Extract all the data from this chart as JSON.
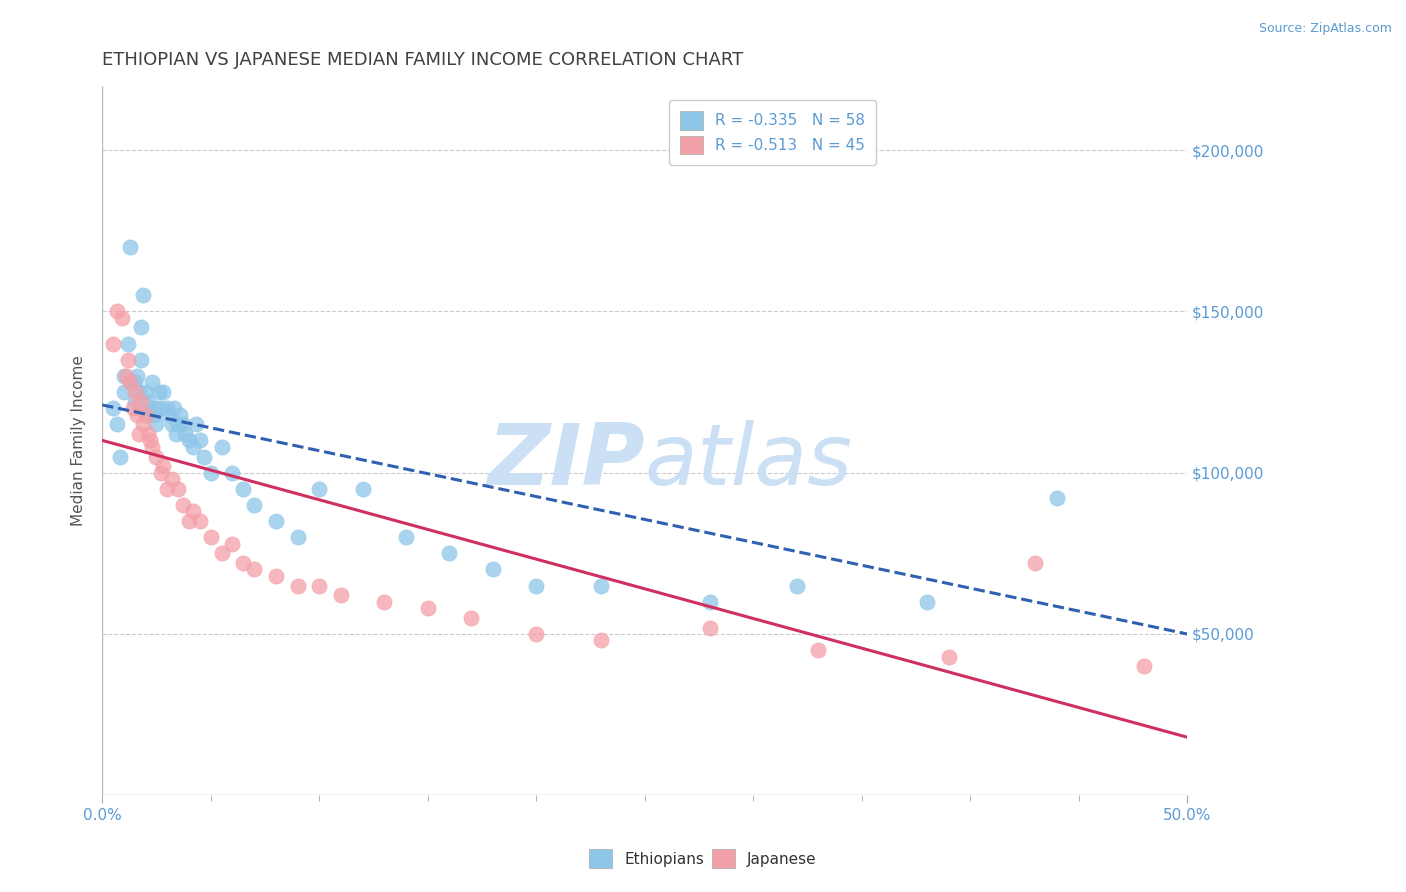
{
  "title": "ETHIOPIAN VS JAPANESE MEDIAN FAMILY INCOME CORRELATION CHART",
  "source_text": "Source: ZipAtlas.com",
  "ylabel": "Median Family Income",
  "xlim": [
    0.0,
    0.5
  ],
  "ylim": [
    0,
    220000
  ],
  "yticks": [
    0,
    50000,
    100000,
    150000,
    200000
  ],
  "ytick_labels": [
    "",
    "$50,000",
    "$100,000",
    "$150,000",
    "$200,000"
  ],
  "xtick_labels_show": [
    "0.0%",
    "50.0%"
  ],
  "xticks_show": [
    0.0,
    0.5
  ],
  "xticks_minor": [
    0.05,
    0.1,
    0.15,
    0.2,
    0.25,
    0.3,
    0.35,
    0.4,
    0.45
  ],
  "legend_entries": [
    {
      "label": "R = -0.335   N = 58",
      "color": "#6baed6"
    },
    {
      "label": "R = -0.513   N = 45",
      "color": "#f08080"
    }
  ],
  "watermark_zip": "ZIP",
  "watermark_atlas": "atlas",
  "watermark_color": "#cce0f5",
  "background_color": "#ffffff",
  "grid_color": "#cccccc",
  "title_color": "#404040",
  "axis_color": "#5b9bd5",
  "ethiopians_color": "#8ec6e8",
  "japanese_color": "#f4a0a8",
  "trend_ethiopians_color": "#3060b0",
  "trend_japanese_color": "#d03060",
  "trend_eth_x0": 0.0,
  "trend_eth_y0": 121000,
  "trend_eth_x1": 0.5,
  "trend_eth_y1": 50000,
  "trend_jpn_x0": 0.0,
  "trend_jpn_y0": 110000,
  "trend_jpn_x1": 0.5,
  "trend_jpn_y1": 18000,
  "ethiopians_x": [
    0.005,
    0.007,
    0.008,
    0.01,
    0.01,
    0.012,
    0.013,
    0.013,
    0.015,
    0.015,
    0.016,
    0.017,
    0.018,
    0.018,
    0.019,
    0.02,
    0.02,
    0.021,
    0.022,
    0.023,
    0.024,
    0.025,
    0.025,
    0.026,
    0.027,
    0.028,
    0.03,
    0.031,
    0.032,
    0.033,
    0.034,
    0.035,
    0.036,
    0.037,
    0.038,
    0.04,
    0.042,
    0.043,
    0.045,
    0.047,
    0.05,
    0.055,
    0.06,
    0.065,
    0.07,
    0.08,
    0.09,
    0.1,
    0.12,
    0.14,
    0.16,
    0.18,
    0.2,
    0.23,
    0.28,
    0.32,
    0.38,
    0.44
  ],
  "ethiopians_y": [
    120000,
    115000,
    105000,
    130000,
    125000,
    140000,
    170000,
    128000,
    128000,
    122000,
    130000,
    125000,
    135000,
    145000,
    155000,
    125000,
    118000,
    122000,
    120000,
    128000,
    118000,
    120000,
    115000,
    125000,
    120000,
    125000,
    120000,
    118000,
    115000,
    120000,
    112000,
    115000,
    118000,
    115000,
    112000,
    110000,
    108000,
    115000,
    110000,
    105000,
    100000,
    108000,
    100000,
    95000,
    90000,
    85000,
    80000,
    95000,
    95000,
    80000,
    75000,
    70000,
    65000,
    65000,
    60000,
    65000,
    60000,
    92000
  ],
  "japanese_x": [
    0.005,
    0.007,
    0.009,
    0.011,
    0.012,
    0.013,
    0.014,
    0.015,
    0.016,
    0.017,
    0.018,
    0.019,
    0.02,
    0.021,
    0.022,
    0.023,
    0.025,
    0.027,
    0.028,
    0.03,
    0.032,
    0.035,
    0.037,
    0.04,
    0.042,
    0.045,
    0.05,
    0.055,
    0.06,
    0.065,
    0.07,
    0.08,
    0.09,
    0.1,
    0.11,
    0.13,
    0.15,
    0.17,
    0.2,
    0.23,
    0.28,
    0.33,
    0.39,
    0.43,
    0.48
  ],
  "japanese_y": [
    140000,
    150000,
    148000,
    130000,
    135000,
    128000,
    120000,
    125000,
    118000,
    112000,
    122000,
    115000,
    118000,
    112000,
    110000,
    108000,
    105000,
    100000,
    102000,
    95000,
    98000,
    95000,
    90000,
    85000,
    88000,
    85000,
    80000,
    75000,
    78000,
    72000,
    70000,
    68000,
    65000,
    65000,
    62000,
    60000,
    58000,
    55000,
    50000,
    48000,
    52000,
    45000,
    43000,
    72000,
    40000
  ]
}
